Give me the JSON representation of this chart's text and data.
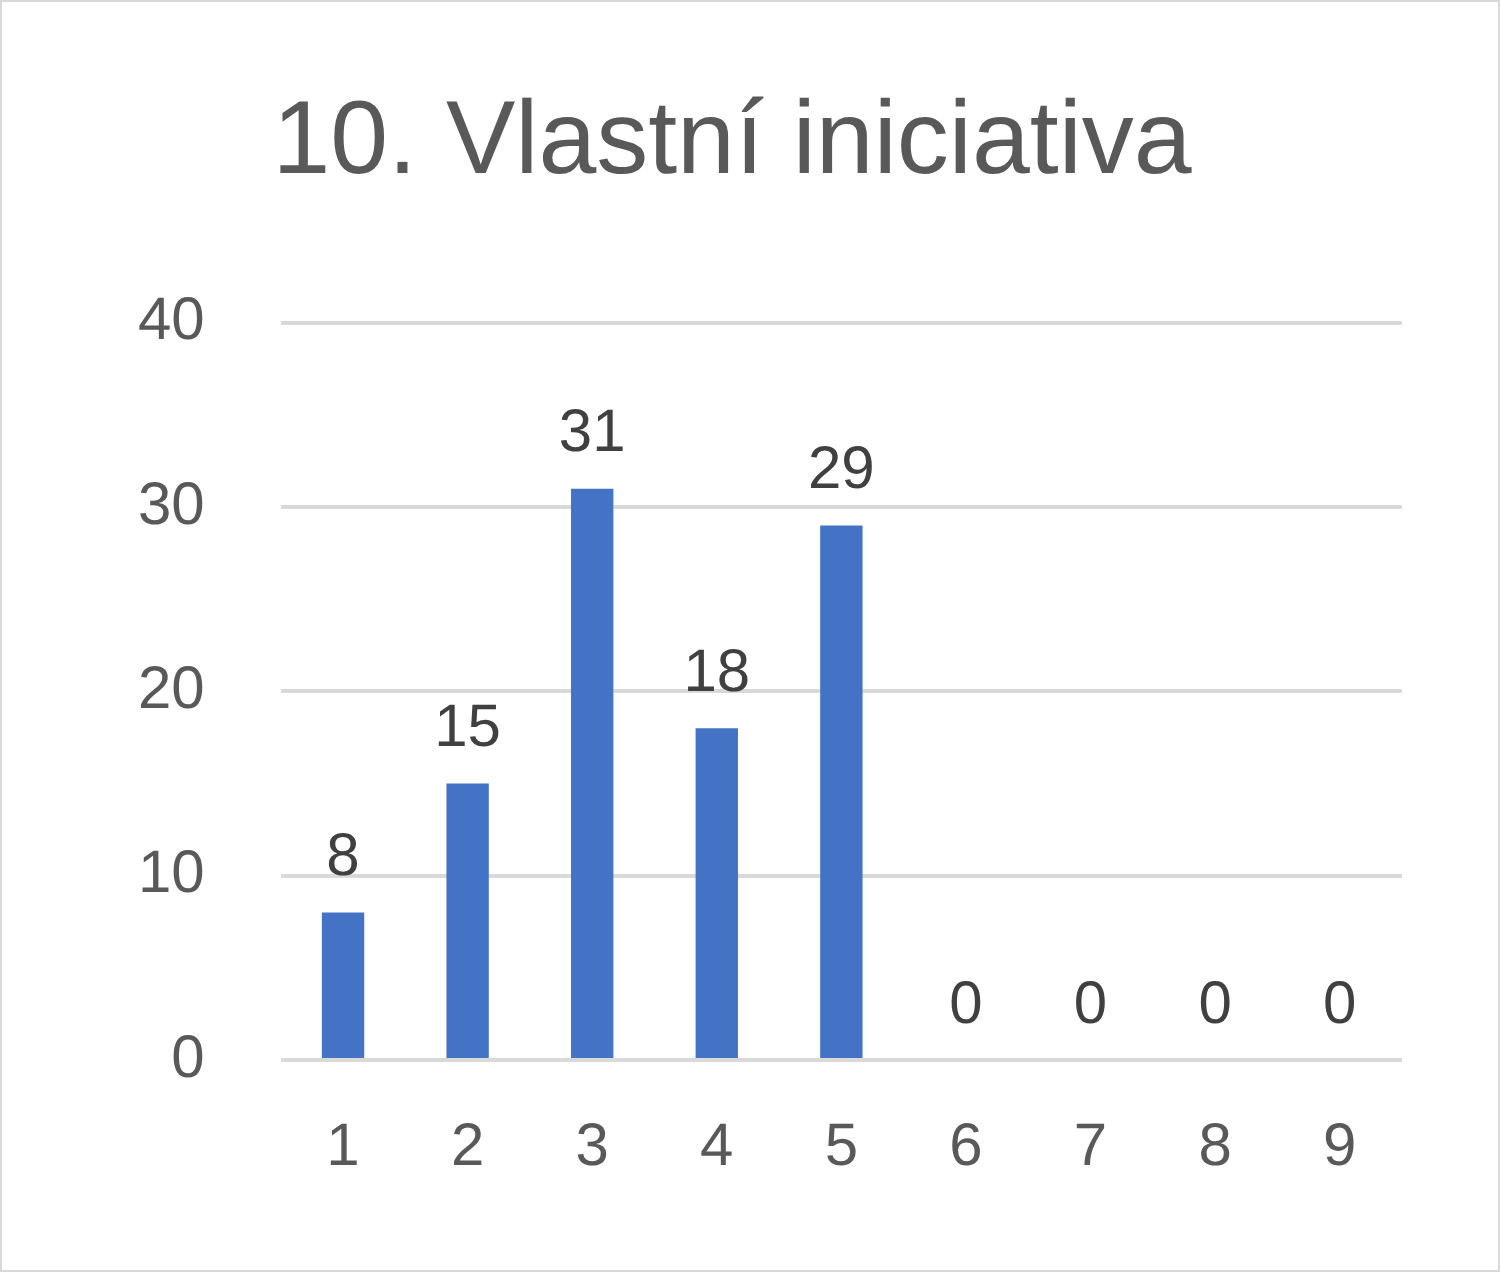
{
  "chart_data": {
    "type": "bar",
    "title": "10. Vlastní iniciativa",
    "categories": [
      "1",
      "2",
      "3",
      "4",
      "5",
      "6",
      "7",
      "8",
      "9"
    ],
    "values": [
      8,
      15,
      31,
      18,
      29,
      0,
      0,
      0,
      0
    ],
    "color": "#4472c4",
    "ylim": [
      0,
      40
    ],
    "yticks": [
      0,
      10,
      20,
      30,
      40
    ],
    "grid": "y",
    "legend": false,
    "data_labels": true
  }
}
